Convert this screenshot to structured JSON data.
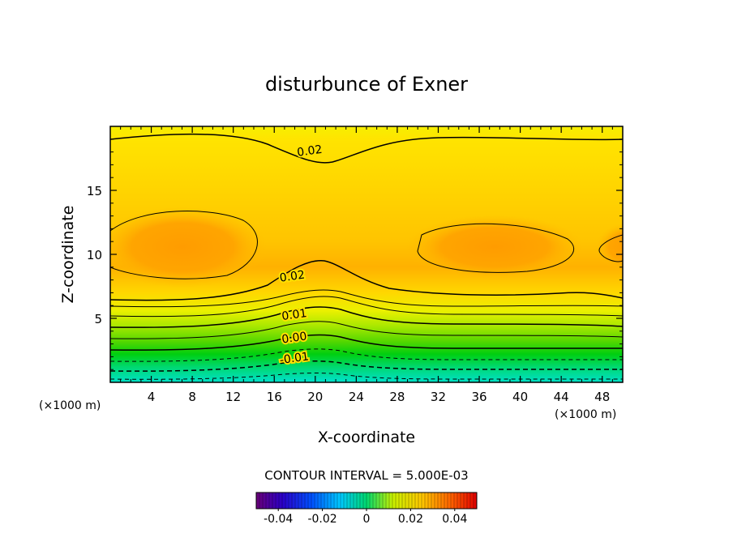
{
  "chart_data": {
    "type": "contour",
    "title": "disturbunce of Exner",
    "xlabel": "X-coordinate",
    "ylabel": "Z-coordinate",
    "x_unit_left": "(×1000 m)",
    "x_unit_right": "(×1000 m)",
    "xlim": [
      0,
      50
    ],
    "ylim": [
      0,
      20
    ],
    "x_ticks": [
      4,
      8,
      12,
      16,
      20,
      24,
      28,
      32,
      36,
      40,
      44,
      48
    ],
    "y_ticks": [
      5,
      10,
      15
    ],
    "contour_interval_label": "CONTOUR INTERVAL = 5.000E-03",
    "contour_labels": [
      {
        "text": "0.02",
        "x": 19.5,
        "z": 17.8
      },
      {
        "text": "0.02",
        "x": 17.8,
        "z": 8.0
      },
      {
        "text": "0.01",
        "x": 18.0,
        "z": 5.0
      },
      {
        "text": "0.00",
        "x": 18.0,
        "z": 3.2
      },
      {
        "text": "-0.01",
        "x": 18.0,
        "z": 1.6
      }
    ],
    "field_levels": [
      {
        "z": 0.0,
        "value": -0.015
      },
      {
        "z": 1.0,
        "value": -0.01
      },
      {
        "z": 2.5,
        "value": 0.0
      },
      {
        "z": 4.5,
        "value": 0.01
      },
      {
        "z": 6.5,
        "value": 0.02
      },
      {
        "z": 10.0,
        "value": 0.028
      },
      {
        "z": 14.0,
        "value": 0.025
      },
      {
        "z": 20.0,
        "value": 0.019
      }
    ],
    "colorbar": {
      "min": -0.05,
      "max": 0.05,
      "tick_labels": [
        "-0.04",
        "-0.02",
        "0",
        "0.02",
        "0.04"
      ],
      "tick_values": [
        -0.04,
        -0.02,
        0,
        0.02,
        0.04
      ]
    }
  },
  "colors": {
    "frame": "#000000",
    "contour": "#000000"
  }
}
